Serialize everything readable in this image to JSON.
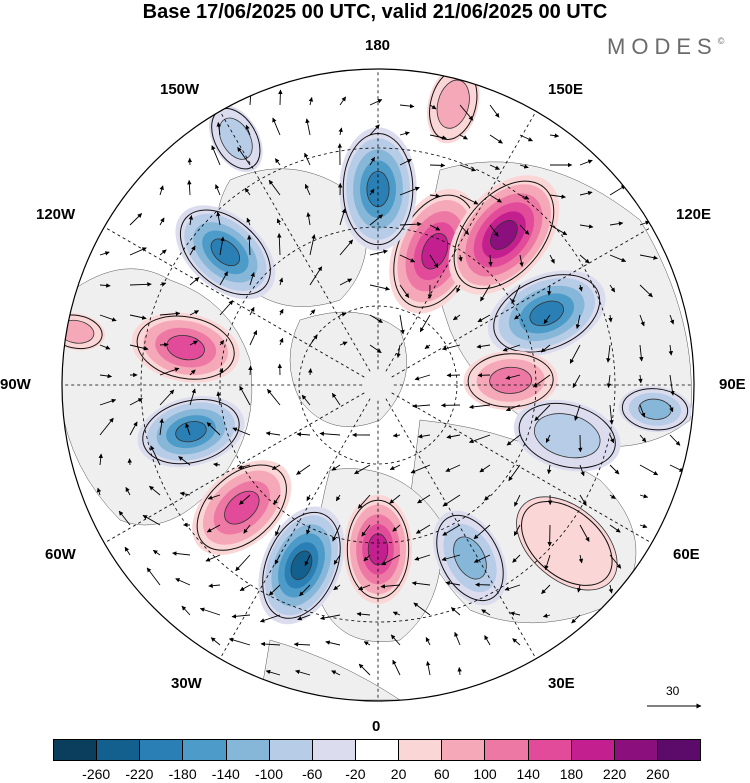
{
  "title": "Base 17/06/2025 00 UTC, valid 21/06/2025 00 UTC",
  "brand": {
    "text": "MODES",
    "mark": "©"
  },
  "longitude_labels": {
    "top": "180",
    "bottom": "0",
    "left": "90W",
    "right": "90E",
    "upper_left_1": "150W",
    "upper_left_2": "120W",
    "upper_right_1": "150E",
    "upper_right_2": "120E",
    "lower_left_1": "60W",
    "lower_left_2": "30W",
    "lower_right_1": "60E",
    "lower_right_2": "30E"
  },
  "vector_scale": {
    "label": "30",
    "icon": "arrow-right-icon"
  },
  "colorbar": {
    "labels": [
      "-260",
      "-220",
      "-180",
      "-140",
      "-100",
      "-60",
      "-20",
      "20",
      "60",
      "100",
      "140",
      "180",
      "220",
      "260"
    ],
    "colors": [
      "#0b3d5c",
      "#13608f",
      "#2a7fb5",
      "#4d9bc8",
      "#86b6d8",
      "#b7cce6",
      "#dcdcef",
      "#ffffff",
      "#fbd6d6",
      "#f5a8b8",
      "#ee78a4",
      "#e24a9a",
      "#c41f8e",
      "#8c0f7e",
      "#5d0b6b"
    ]
  },
  "map": {
    "projection": "north-polar-stereographic",
    "land_color": "#efefef",
    "anomalies": [
      {
        "lon": 157,
        "r": 0.46,
        "value": 210,
        "size": 0.18
      },
      {
        "lon": 180,
        "r": 0.62,
        "value": -190,
        "size": 0.17
      },
      {
        "lon": 140,
        "r": 0.62,
        "value": 230,
        "size": 0.19
      },
      {
        "lon": 113,
        "r": 0.58,
        "value": -180,
        "size": 0.17
      },
      {
        "lon": 92,
        "r": 0.42,
        "value": 110,
        "size": 0.13
      },
      {
        "lon": 75,
        "r": 0.62,
        "value": -60,
        "size": 0.15
      },
      {
        "lon": 85,
        "r": 0.88,
        "value": -100,
        "size": 0.1
      },
      {
        "lon": -131,
        "r": 0.64,
        "value": -200,
        "size": 0.16
      },
      {
        "lon": -101,
        "r": 0.62,
        "value": 160,
        "size": 0.15
      },
      {
        "lon": -76,
        "r": 0.61,
        "value": -180,
        "size": 0.15
      },
      {
        "lon": -48,
        "r": 0.58,
        "value": 170,
        "size": 0.16
      },
      {
        "lon": -23,
        "r": 0.62,
        "value": -240,
        "size": 0.17
      },
      {
        "lon": 0,
        "r": 0.52,
        "value": 190,
        "size": 0.15
      },
      {
        "lon": 28,
        "r": 0.62,
        "value": -110,
        "size": 0.14
      },
      {
        "lon": 50,
        "r": 0.78,
        "value": 40,
        "size": 0.16
      },
      {
        "lon": -150,
        "r": 0.9,
        "value": -60,
        "size": 0.1
      },
      {
        "lon": 165,
        "r": 0.92,
        "value": 60,
        "size": 0.11
      },
      {
        "lon": -100,
        "r": 0.97,
        "value": 70,
        "size": 0.08
      }
    ]
  }
}
